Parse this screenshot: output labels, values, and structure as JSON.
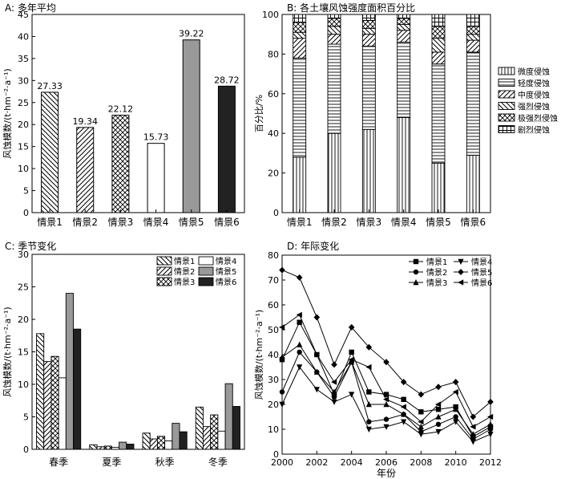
{
  "chart_data": [
    {
      "type": "bar",
      "title": "A: 多年平均",
      "ylabel": "风蚀模数/(t·hm⁻²·a⁻¹)",
      "xlabel": "",
      "ylim": [
        0,
        45
      ],
      "yticks": [
        0,
        5,
        10,
        15,
        20,
        25,
        30,
        35,
        40,
        45
      ],
      "categories": [
        "情景1",
        "情景2",
        "情景3",
        "情景4",
        "情景5",
        "情景6"
      ],
      "values": [
        27.33,
        19.34,
        22.12,
        15.73,
        39.22,
        28.72
      ],
      "value_labels": [
        "27.33",
        "19.34",
        "22.12",
        "15.73",
        "39.22",
        "28.72"
      ],
      "fills": [
        "diag-back",
        "diag-fwd",
        "crosshatch",
        "#ffffff",
        "#999999",
        "#222222"
      ]
    },
    {
      "type": "bar",
      "stacked": true,
      "title": "B: 各土壤风蚀强度面积百分比",
      "ylabel": "百分比/%",
      "xlabel": "",
      "ylim": [
        0,
        100
      ],
      "yticks": [
        0,
        20,
        40,
        60,
        80,
        100
      ],
      "categories": [
        "情景1",
        "情景2",
        "情景3",
        "情景4",
        "情景5",
        "情景6"
      ],
      "series": [
        {
          "name": "微度侵蚀",
          "fill": "vlines",
          "values": [
            28,
            40,
            42,
            48,
            25,
            29
          ]
        },
        {
          "name": "轻度侵蚀",
          "fill": "hlines",
          "values": [
            50,
            45,
            42,
            38,
            50,
            52
          ]
        },
        {
          "name": "中度侵蚀",
          "fill": "diag-fwd",
          "values": [
            10,
            5,
            6,
            6,
            6,
            6
          ]
        },
        {
          "name": "强烈侵蚀",
          "fill": "diag-back",
          "values": [
            3,
            4,
            3,
            3,
            7,
            3
          ]
        },
        {
          "name": "极强烈侵蚀",
          "fill": "crosshatch",
          "values": [
            5,
            4,
            4,
            3,
            6,
            4
          ]
        },
        {
          "name": "剧烈侵蚀",
          "fill": "grid",
          "values": [
            4,
            2,
            3,
            2,
            6,
            6
          ]
        }
      ],
      "legend_position": "right"
    },
    {
      "type": "bar",
      "title": "C: 季节变化",
      "ylabel": "风蚀模数/(t·hm⁻²·a⁻¹)",
      "xlabel": "",
      "ylim": [
        0,
        30
      ],
      "yticks": [
        0,
        5,
        10,
        15,
        20,
        25,
        30
      ],
      "categories": [
        "春季",
        "夏季",
        "秋季",
        "冬季"
      ],
      "series": [
        {
          "name": "情景1",
          "fill": "diag-back",
          "values": [
            17.8,
            0.7,
            2.5,
            6.5
          ]
        },
        {
          "name": "情景2",
          "fill": "diag-fwd",
          "values": [
            13.5,
            0.4,
            1.6,
            3.5
          ]
        },
        {
          "name": "情景3",
          "fill": "crosshatch",
          "values": [
            14.3,
            0.5,
            2.0,
            5.3
          ]
        },
        {
          "name": "情景4",
          "fill": "#ffffff",
          "values": [
            11.0,
            0.3,
            1.3,
            2.8
          ]
        },
        {
          "name": "情景5",
          "fill": "#999999",
          "values": [
            24.0,
            1.1,
            4.0,
            10.1
          ]
        },
        {
          "name": "情景6",
          "fill": "#222222",
          "values": [
            18.5,
            0.8,
            2.7,
            6.6
          ]
        }
      ],
      "legend_position": "top-right"
    },
    {
      "type": "line",
      "title": "D: 年际变化",
      "ylabel": "风蚀模数/(t·hm⁻²·a⁻¹)",
      "xlabel": "年份",
      "xlim": [
        2000,
        2012
      ],
      "ylim": [
        0,
        80
      ],
      "xticks": [
        2000,
        2002,
        2004,
        2006,
        2008,
        2010,
        2012
      ],
      "yticks": [
        0,
        10,
        20,
        30,
        40,
        50,
        60,
        70,
        80
      ],
      "x": [
        2000,
        2001,
        2002,
        2003,
        2004,
        2005,
        2006,
        2007,
        2008,
        2009,
        2010,
        2011,
        2012
      ],
      "series": [
        {
          "name": "情景1",
          "marker": "square",
          "values": [
            38,
            53,
            40,
            24,
            41,
            25,
            24,
            22,
            17,
            18,
            19,
            7,
            11
          ]
        },
        {
          "name": "情景2",
          "marker": "circle",
          "values": [
            25,
            41,
            33,
            23,
            37,
            13,
            14,
            16,
            9,
            12,
            15,
            6,
            10
          ]
        },
        {
          "name": "情景3",
          "marker": "triangle-up",
          "values": [
            39,
            44,
            33,
            25,
            37,
            20,
            20,
            16,
            11,
            15,
            18,
            8,
            12
          ]
        },
        {
          "name": "情景4",
          "marker": "triangle-down",
          "values": [
            20,
            35,
            26,
            21,
            24,
            10,
            11,
            13,
            8,
            9,
            13,
            5,
            8
          ]
        },
        {
          "name": "情景5",
          "marker": "diamond",
          "values": [
            74,
            71,
            55,
            36,
            51,
            43,
            37,
            29,
            24,
            27,
            29,
            15,
            21
          ]
        },
        {
          "name": "情景6",
          "marker": "triangle-left",
          "values": [
            51,
            56,
            40,
            29,
            38,
            35,
            22,
            19,
            13,
            20,
            25,
            11,
            15
          ]
        }
      ],
      "legend_position": "top-right"
    }
  ]
}
